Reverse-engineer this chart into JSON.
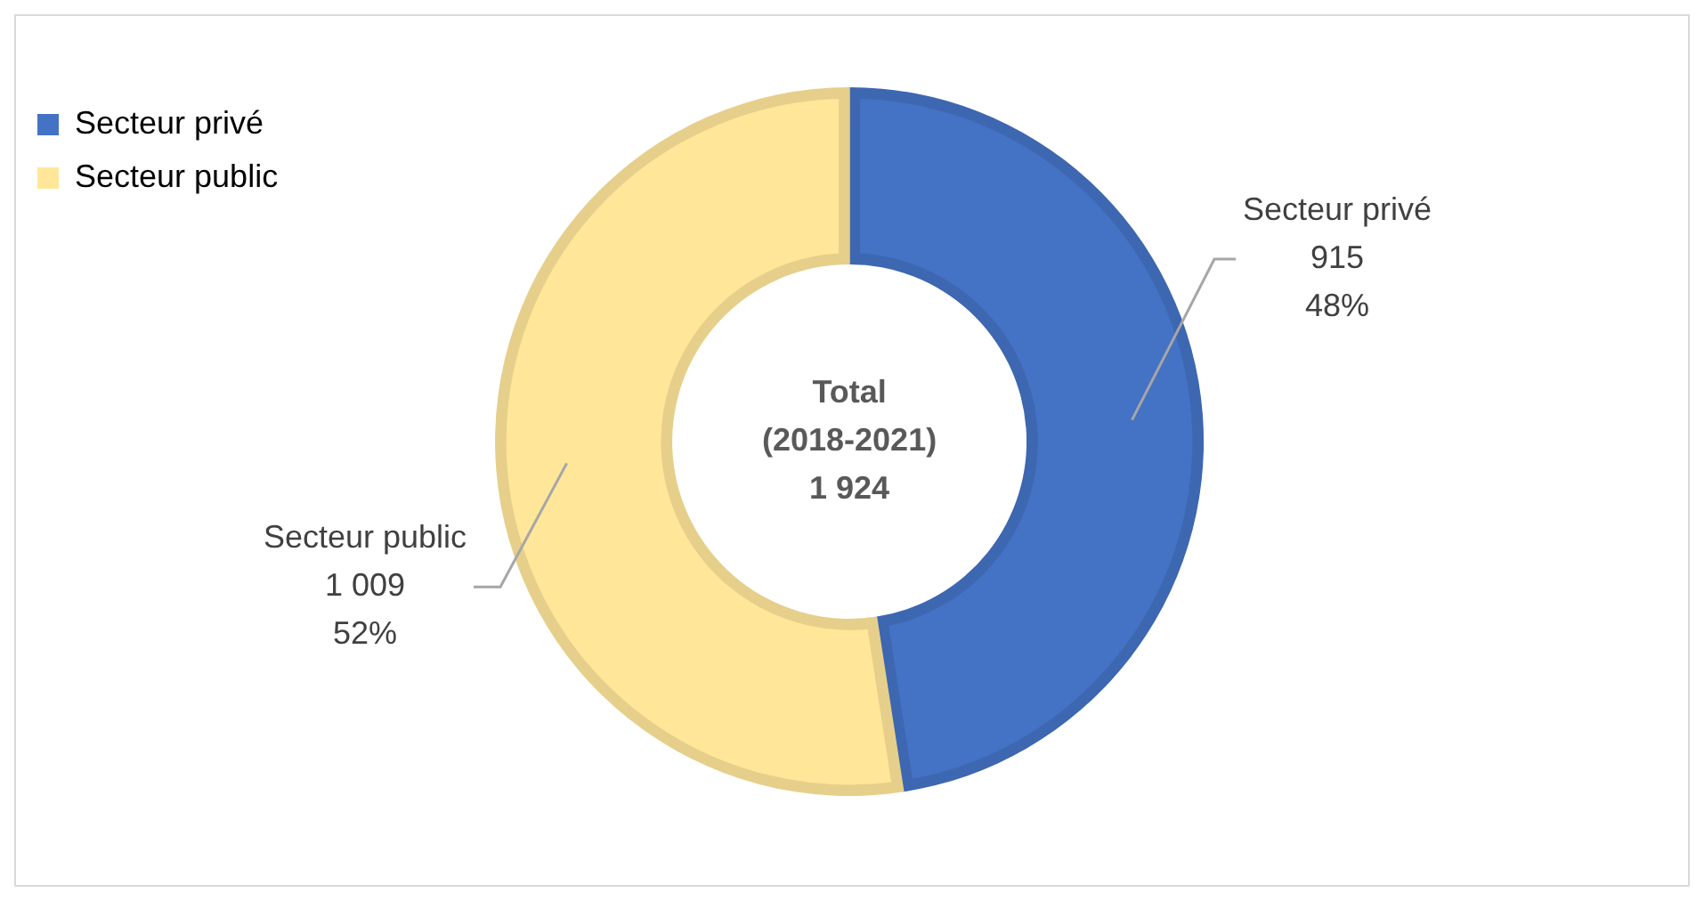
{
  "chart_data": {
    "type": "donut",
    "categories": [
      "Secteur privé",
      "Secteur public"
    ],
    "values": [
      915,
      1009
    ],
    "colors": [
      "#4472c4",
      "#ffe699"
    ],
    "value_labels": [
      "915\n48%",
      "1 009\n52%"
    ],
    "annotations": [
      "Total\n(2018-2021)\n1 924"
    ],
    "legend": "top left"
  }
}
